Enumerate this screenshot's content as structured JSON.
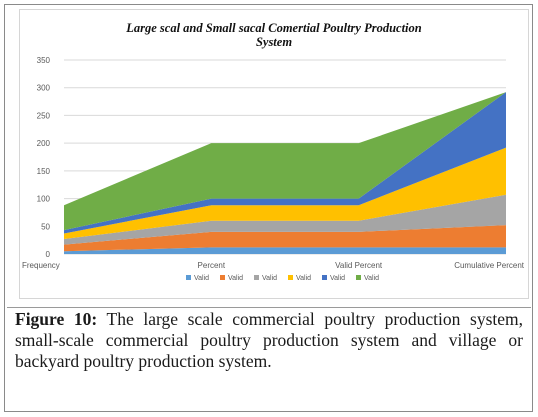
{
  "figure": {
    "label": "Figure 10:",
    "text": "The large scale commercial poultry production system, small-scale commercial poultry production system and village or backyard poultry production system."
  },
  "chart_data": {
    "type": "area",
    "stacked": true,
    "title": "Large scal and Small sacal Comertial Poultry Production System",
    "title_lines": [
      "Large scal and Small sacal Comertial Poultry Production",
      "System"
    ],
    "categories": [
      "Frequency",
      "Percent",
      "Valid Percent",
      "Cumulative Percent"
    ],
    "ylim": [
      0,
      350
    ],
    "yticks": [
      0,
      50,
      100,
      150,
      200,
      250,
      300,
      350
    ],
    "grid": true,
    "legend_position": "bottom",
    "series": [
      {
        "name": "Valid",
        "color": "#5b9bd5",
        "values": [
          5,
          12,
          12,
          12
        ]
      },
      {
        "name": "Valid",
        "color": "#ed7d31",
        "values": [
          12,
          28,
          28,
          40
        ]
      },
      {
        "name": "Valid",
        "color": "#a5a5a5",
        "values": [
          10,
          20,
          20,
          55
        ]
      },
      {
        "name": "Valid",
        "color": "#ffc000",
        "values": [
          10,
          28,
          28,
          85
        ]
      },
      {
        "name": "Valid",
        "color": "#4472c4",
        "values": [
          6,
          12,
          12,
          100
        ]
      },
      {
        "name": "Valid",
        "color": "#70ad47",
        "values": [
          45,
          100,
          100,
          0
        ]
      }
    ]
  }
}
